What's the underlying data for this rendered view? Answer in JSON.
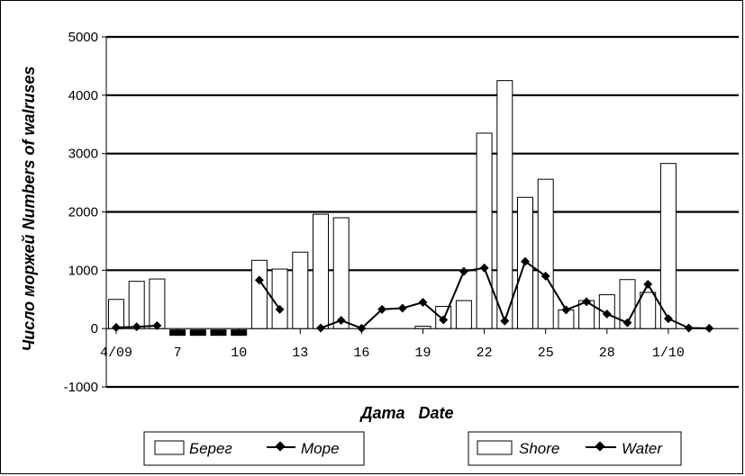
{
  "chart_data": {
    "type": "bar",
    "xlabel": "Дата   Date",
    "ylabel": "Число моржей   Numbers of walruses",
    "ylim": [
      -1000,
      5000
    ],
    "yticks": [
      5000,
      4000,
      3000,
      2000,
      1000,
      0,
      -1000
    ],
    "x_ticks": [
      {
        "day": 1,
        "label": "4/09"
      },
      {
        "day": 4,
        "label": "7"
      },
      {
        "day": 7,
        "label": "10"
      },
      {
        "day": 10,
        "label": "13"
      },
      {
        "day": 13,
        "label": "16"
      },
      {
        "day": 16,
        "label": "19"
      },
      {
        "day": 19,
        "label": "22"
      },
      {
        "day": 22,
        "label": "25"
      },
      {
        "day": 25,
        "label": "28"
      },
      {
        "day": 28,
        "label": "1/10"
      }
    ],
    "day_range": [
      1,
      30
    ],
    "grid": true,
    "legend_position": "bottom",
    "no_data_days": [
      4,
      5,
      6,
      7
    ],
    "series": [
      {
        "name": "Берег / Shore",
        "type": "bar",
        "points": [
          {
            "day": 1,
            "value": 500
          },
          {
            "day": 2,
            "value": 810
          },
          {
            "day": 3,
            "value": 850
          },
          {
            "day": 8,
            "value": 1170
          },
          {
            "day": 9,
            "value": 1020
          },
          {
            "day": 10,
            "value": 1310
          },
          {
            "day": 11,
            "value": 1960
          },
          {
            "day": 12,
            "value": 1900
          },
          {
            "day": 16,
            "value": 40
          },
          {
            "day": 17,
            "value": 380
          },
          {
            "day": 18,
            "value": 480
          },
          {
            "day": 19,
            "value": 3350
          },
          {
            "day": 20,
            "value": 4250
          },
          {
            "day": 21,
            "value": 2250
          },
          {
            "day": 22,
            "value": 2560
          },
          {
            "day": 23,
            "value": 320
          },
          {
            "day": 24,
            "value": 480
          },
          {
            "day": 25,
            "value": 580
          },
          {
            "day": 26,
            "value": 840
          },
          {
            "day": 27,
            "value": 620
          },
          {
            "day": 28,
            "value": 2830
          }
        ]
      },
      {
        "name": "Море / Water",
        "type": "line",
        "segments": [
          [
            {
              "day": 1,
              "value": 20
            },
            {
              "day": 2,
              "value": 30
            },
            {
              "day": 3,
              "value": 50
            }
          ],
          [
            {
              "day": 8,
              "value": 830
            },
            {
              "day": 9,
              "value": 330
            }
          ],
          [
            {
              "day": 11,
              "value": 10
            },
            {
              "day": 12,
              "value": 140
            },
            {
              "day": 13,
              "value": 5
            },
            {
              "day": 14,
              "value": 330
            },
            {
              "day": 15,
              "value": 350
            },
            {
              "day": 16,
              "value": 450
            },
            {
              "day": 17,
              "value": 150
            },
            {
              "day": 18,
              "value": 980
            },
            {
              "day": 19,
              "value": 1040
            },
            {
              "day": 20,
              "value": 130
            },
            {
              "day": 21,
              "value": 1150
            },
            {
              "day": 22,
              "value": 900
            },
            {
              "day": 23,
              "value": 320
            },
            {
              "day": 24,
              "value": 460
            },
            {
              "day": 25,
              "value": 250
            },
            {
              "day": 26,
              "value": 100
            },
            {
              "day": 27,
              "value": 760
            },
            {
              "day": 28,
              "value": 170
            },
            {
              "day": 29,
              "value": 10
            },
            {
              "day": 30,
              "value": 5
            }
          ]
        ]
      }
    ]
  },
  "legend": {
    "left": {
      "bar_label": "Берег",
      "line_label": "Море"
    },
    "right": {
      "bar_label": "Shore",
      "line_label": "Water"
    }
  },
  "colors": {
    "bar_fill": "#ffffff",
    "line": "#000000",
    "no_data": "#000000"
  }
}
